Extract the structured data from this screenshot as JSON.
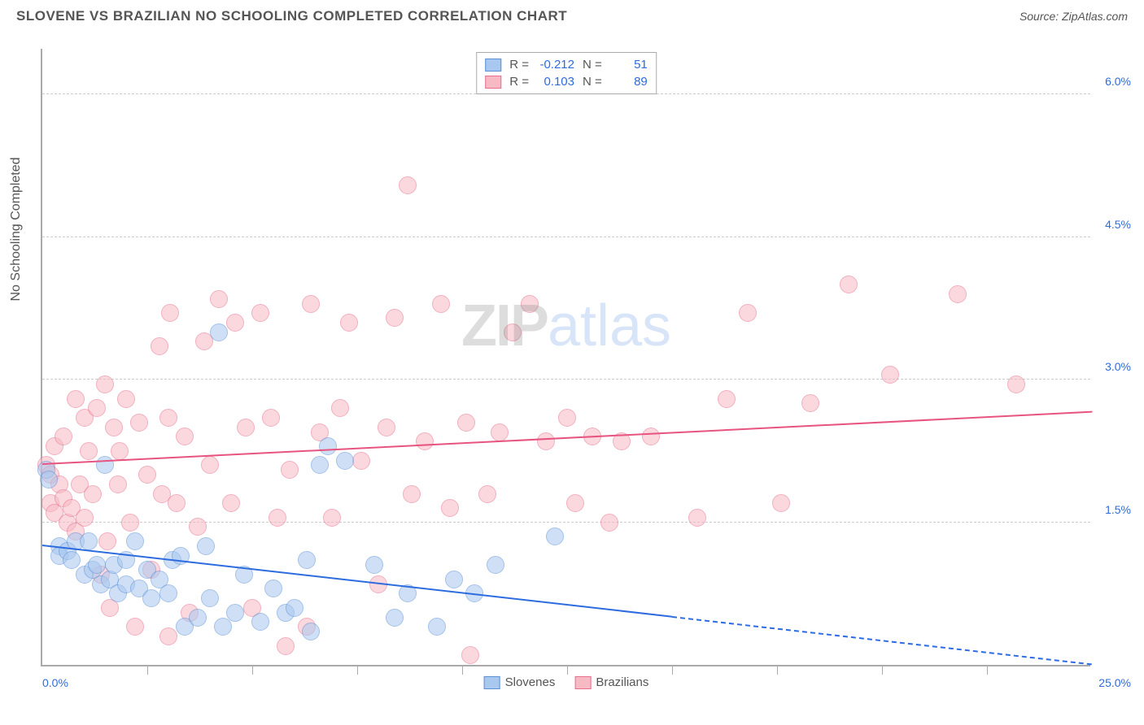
{
  "header": {
    "title": "SLOVENE VS BRAZILIAN NO SCHOOLING COMPLETED CORRELATION CHART",
    "source": "Source: ZipAtlas.com"
  },
  "watermark": {
    "part1": "ZIP",
    "part2": "atlas"
  },
  "chart": {
    "type": "scatter",
    "xlim": [
      0,
      25
    ],
    "ylim": [
      0,
      6.5
    ],
    "x_min_label": "0.0%",
    "x_max_label": "25.0%",
    "y_axis_title": "No Schooling Completed",
    "y_ticks": [
      {
        "v": 1.5,
        "label": "1.5%"
      },
      {
        "v": 3.0,
        "label": "3.0%"
      },
      {
        "v": 4.5,
        "label": "4.5%"
      },
      {
        "v": 6.0,
        "label": "6.0%"
      }
    ],
    "x_tick_step": 2.5,
    "grid_color": "#cccccc",
    "axis_color": "#aaaaaa",
    "background": "#ffffff",
    "point_radius": 11,
    "point_opacity": 0.55,
    "series": [
      {
        "name": "Slovenes",
        "color_fill": "#a8c8f0",
        "color_stroke": "#5b8fd6",
        "trend": {
          "x1": 0,
          "y1": 1.25,
          "x2": 15,
          "y2": 0.5,
          "dash_to_x": 25,
          "dash_to_y": 0.0,
          "color": "#2d6cdf"
        },
        "stats": {
          "R": "-0.212",
          "N": "51"
        },
        "points": [
          [
            0.1,
            2.05
          ],
          [
            0.15,
            1.95
          ],
          [
            0.4,
            1.25
          ],
          [
            0.4,
            1.15
          ],
          [
            0.6,
            1.2
          ],
          [
            0.7,
            1.1
          ],
          [
            0.8,
            1.3
          ],
          [
            1.0,
            0.95
          ],
          [
            1.1,
            1.3
          ],
          [
            1.2,
            1.0
          ],
          [
            1.3,
            1.05
          ],
          [
            1.4,
            0.85
          ],
          [
            1.5,
            2.1
          ],
          [
            1.6,
            0.9
          ],
          [
            1.7,
            1.05
          ],
          [
            1.8,
            0.75
          ],
          [
            2.0,
            0.85
          ],
          [
            2.0,
            1.1
          ],
          [
            2.2,
            1.3
          ],
          [
            2.3,
            0.8
          ],
          [
            2.5,
            1.0
          ],
          [
            2.6,
            0.7
          ],
          [
            2.8,
            0.9
          ],
          [
            3.0,
            0.75
          ],
          [
            3.1,
            1.1
          ],
          [
            3.3,
            1.15
          ],
          [
            3.4,
            0.4
          ],
          [
            3.7,
            0.5
          ],
          [
            3.9,
            1.25
          ],
          [
            4.0,
            0.7
          ],
          [
            4.2,
            3.5
          ],
          [
            4.3,
            0.4
          ],
          [
            4.6,
            0.55
          ],
          [
            4.8,
            0.95
          ],
          [
            5.2,
            0.45
          ],
          [
            5.5,
            0.8
          ],
          [
            5.8,
            0.55
          ],
          [
            6.0,
            0.6
          ],
          [
            6.3,
            1.1
          ],
          [
            6.4,
            0.35
          ],
          [
            6.6,
            2.1
          ],
          [
            6.8,
            2.3
          ],
          [
            7.2,
            2.15
          ],
          [
            7.9,
            1.05
          ],
          [
            8.4,
            0.5
          ],
          [
            8.7,
            0.75
          ],
          [
            9.4,
            0.4
          ],
          [
            9.8,
            0.9
          ],
          [
            10.3,
            0.75
          ],
          [
            10.8,
            1.05
          ],
          [
            12.2,
            1.35
          ]
        ]
      },
      {
        "name": "Brazilians",
        "color_fill": "#f7b9c4",
        "color_stroke": "#e76f8c",
        "trend": {
          "x1": 0,
          "y1": 2.1,
          "x2": 25,
          "y2": 2.65,
          "color": "#e75480"
        },
        "stats": {
          "R": "0.103",
          "N": "89"
        },
        "points": [
          [
            0.1,
            2.1
          ],
          [
            0.2,
            2.0
          ],
          [
            0.2,
            1.7
          ],
          [
            0.3,
            1.6
          ],
          [
            0.3,
            2.3
          ],
          [
            0.4,
            1.9
          ],
          [
            0.5,
            1.75
          ],
          [
            0.5,
            2.4
          ],
          [
            0.6,
            1.5
          ],
          [
            0.7,
            1.65
          ],
          [
            0.8,
            2.8
          ],
          [
            0.8,
            1.4
          ],
          [
            0.9,
            1.9
          ],
          [
            1.0,
            2.6
          ],
          [
            1.0,
            1.55
          ],
          [
            1.1,
            2.25
          ],
          [
            1.2,
            1.8
          ],
          [
            1.3,
            2.7
          ],
          [
            1.4,
            0.95
          ],
          [
            1.5,
            2.95
          ],
          [
            1.55,
            1.3
          ],
          [
            1.6,
            0.6
          ],
          [
            1.7,
            2.5
          ],
          [
            1.8,
            1.9
          ],
          [
            1.85,
            2.25
          ],
          [
            2.0,
            2.8
          ],
          [
            2.1,
            1.5
          ],
          [
            2.2,
            0.4
          ],
          [
            2.3,
            2.55
          ],
          [
            2.5,
            2.0
          ],
          [
            2.6,
            1.0
          ],
          [
            2.8,
            3.35
          ],
          [
            2.85,
            1.8
          ],
          [
            3.0,
            2.6
          ],
          [
            3.0,
            0.3
          ],
          [
            3.05,
            3.7
          ],
          [
            3.2,
            1.7
          ],
          [
            3.4,
            2.4
          ],
          [
            3.5,
            0.55
          ],
          [
            3.7,
            1.45
          ],
          [
            3.85,
            3.4
          ],
          [
            4.0,
            2.1
          ],
          [
            4.2,
            3.85
          ],
          [
            4.5,
            1.7
          ],
          [
            4.6,
            3.6
          ],
          [
            4.85,
            2.5
          ],
          [
            5.0,
            0.6
          ],
          [
            5.2,
            3.7
          ],
          [
            5.45,
            2.6
          ],
          [
            5.6,
            1.55
          ],
          [
            5.8,
            0.2
          ],
          [
            5.9,
            2.05
          ],
          [
            6.3,
            0.4
          ],
          [
            6.4,
            3.8
          ],
          [
            6.6,
            2.45
          ],
          [
            6.9,
            1.55
          ],
          [
            7.1,
            2.7
          ],
          [
            7.3,
            3.6
          ],
          [
            7.6,
            2.15
          ],
          [
            8.0,
            0.85
          ],
          [
            8.2,
            2.5
          ],
          [
            8.4,
            3.65
          ],
          [
            8.7,
            5.05
          ],
          [
            8.8,
            1.8
          ],
          [
            9.1,
            2.35
          ],
          [
            9.5,
            3.8
          ],
          [
            9.7,
            1.65
          ],
          [
            10.1,
            2.55
          ],
          [
            10.2,
            0.1
          ],
          [
            10.6,
            1.8
          ],
          [
            10.9,
            2.45
          ],
          [
            11.2,
            3.5
          ],
          [
            11.6,
            3.8
          ],
          [
            12.0,
            2.35
          ],
          [
            12.5,
            2.6
          ],
          [
            12.7,
            1.7
          ],
          [
            13.1,
            2.4
          ],
          [
            13.5,
            1.5
          ],
          [
            13.8,
            2.35
          ],
          [
            14.5,
            2.4
          ],
          [
            15.6,
            1.55
          ],
          [
            16.3,
            2.8
          ],
          [
            16.8,
            3.7
          ],
          [
            17.6,
            1.7
          ],
          [
            18.3,
            2.75
          ],
          [
            19.2,
            4.0
          ],
          [
            20.2,
            3.05
          ],
          [
            21.8,
            3.9
          ],
          [
            23.2,
            2.95
          ]
        ]
      }
    ],
    "legend_bottom": [
      {
        "label": "Slovenes",
        "fill": "#a8c8f0",
        "stroke": "#5b8fd6"
      },
      {
        "label": "Brazilians",
        "fill": "#f7b9c4",
        "stroke": "#e76f8c"
      }
    ]
  }
}
